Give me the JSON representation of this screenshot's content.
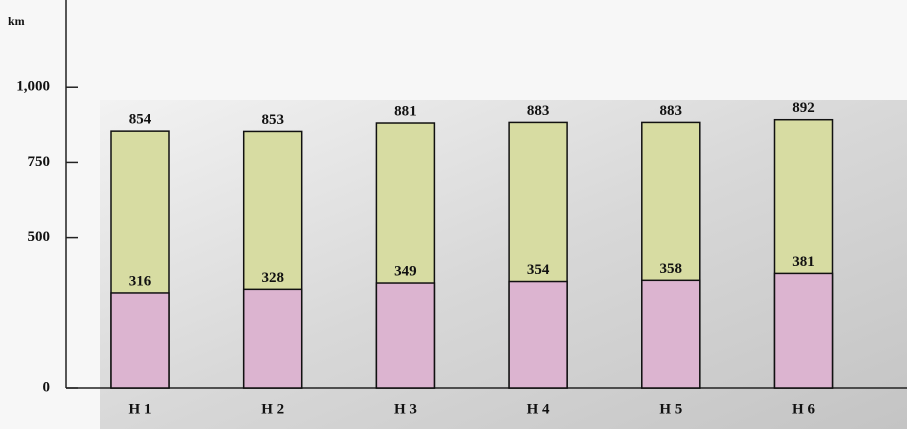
{
  "chart_data": {
    "type": "bar",
    "y_unit": "km",
    "categories": [
      "H 1",
      "H 2",
      "H 3",
      "H 4",
      "H 5",
      "H 6"
    ],
    "series": [
      {
        "color": "#dcb4d0",
        "values": [
          316,
          328,
          349,
          354,
          358,
          381
        ]
      },
      {
        "color": "#d7dca2",
        "values": [
          854,
          853,
          881,
          883,
          883,
          892
        ]
      }
    ],
    "ylim": [
      0,
      1290
    ],
    "yticks": [
      0,
      500,
      750,
      {
        "value": 1000,
        "label": "1,000"
      }
    ]
  }
}
